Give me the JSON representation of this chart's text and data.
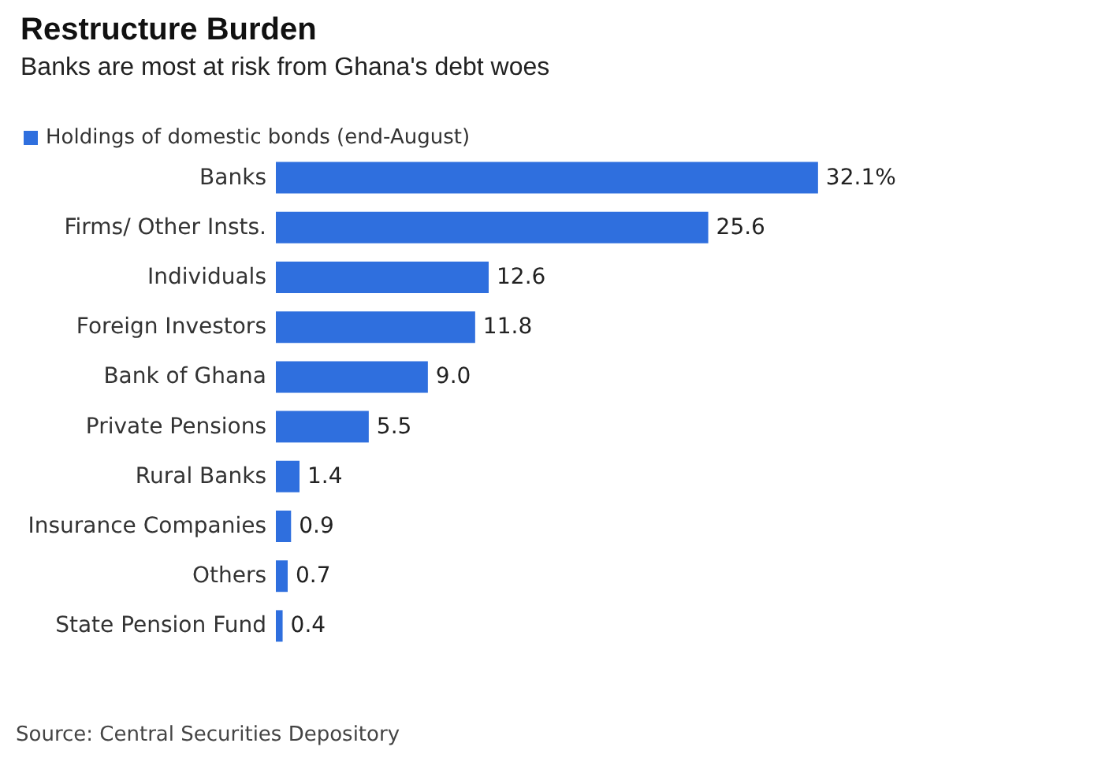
{
  "chart_data": {
    "type": "bar",
    "orientation": "horizontal",
    "title": "Restructure Burden",
    "subtitle": "Banks are most at risk from Ghana's debt woes",
    "categories": [
      "Banks",
      "Firms/ Other Insts.",
      "Individuals",
      "Foreign Investors",
      "Bank of Ghana",
      "Private Pensions",
      "Rural Banks",
      "Insurance Companies",
      "Others",
      "State Pension Fund"
    ],
    "series": [
      {
        "name": "Holdings of domestic bonds (end-August)",
        "color": "#2f6fde",
        "values": [
          32.1,
          25.6,
          12.6,
          11.8,
          9.0,
          5.5,
          1.4,
          0.9,
          0.7,
          0.4
        ],
        "value_labels": [
          "32.1%",
          "25.6",
          "12.6",
          "11.8",
          "9.0",
          "5.5",
          "1.4",
          "0.9",
          "0.7",
          "0.4"
        ]
      }
    ],
    "legend": "top left",
    "annotations": [
      "Source: Central Securities Depository"
    ]
  }
}
